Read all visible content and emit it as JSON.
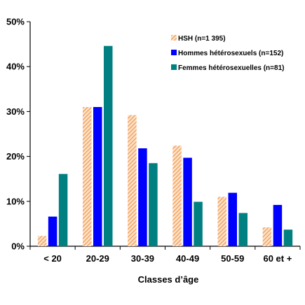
{
  "chart_data": {
    "type": "bar",
    "title": "",
    "xlabel": "Classes d’âge",
    "ylabel": "",
    "ylim": [
      0,
      50
    ],
    "yticks": [
      "0%",
      "10%",
      "20%",
      "30%",
      "40%",
      "50%"
    ],
    "categories": [
      "< 20",
      "20-29",
      "30-39",
      "40-49",
      "50-59",
      "60 et +"
    ],
    "series": [
      {
        "name": "HSH (n=1 395)",
        "color": "#F4A460",
        "pattern": "hatched",
        "values": [
          2.3,
          31.0,
          29.2,
          22.4,
          11.0,
          4.2
        ]
      },
      {
        "name": "Hommes hétérosexuels (n=152)",
        "color": "#0000FF",
        "values": [
          6.6,
          31.0,
          21.8,
          19.7,
          11.9,
          9.2
        ]
      },
      {
        "name": "Femmes hétérosexuelles (n=81)",
        "color": "#008080",
        "values": [
          16.1,
          44.6,
          18.5,
          9.9,
          7.4,
          3.7
        ]
      }
    ],
    "legend_position": "top-right",
    "grid": false
  }
}
